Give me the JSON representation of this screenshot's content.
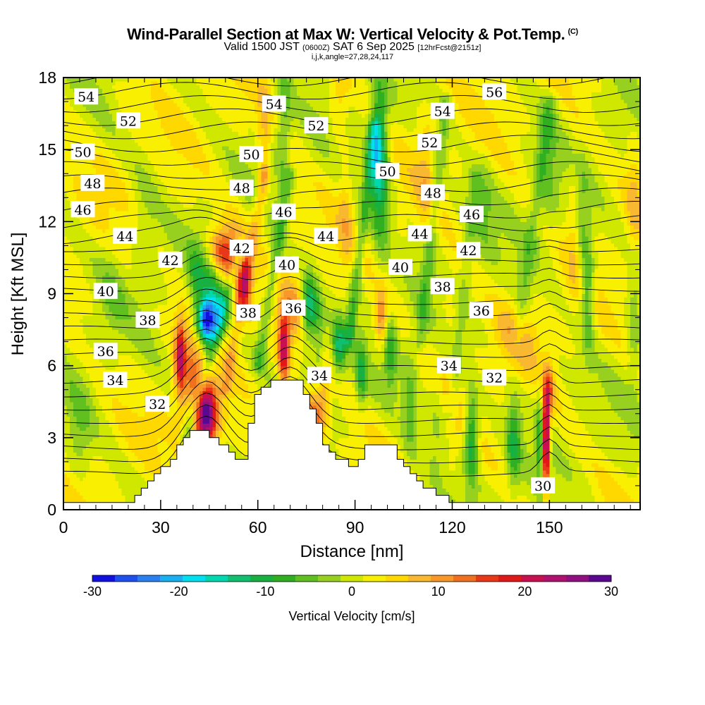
{
  "header": {
    "title": "Wind-Parallel Section at Max W: Vertical Velocity & Pot.Temp.",
    "title_mark": "(C)",
    "valid_prefix": "Valid 1500 JST",
    "valid_utc": "(0600Z)",
    "valid_date": "SAT 6 Sep 2025",
    "forecast": "[12hrFcst@2151z]",
    "indices": "i,j,k,angle=27,28,24,117"
  },
  "chart_data": {
    "type": "heatmap",
    "title": "Wind-Parallel Section at Max W: Vertical Velocity & Pot.Temp.",
    "xlabel": "Distance [nm]",
    "ylabel": "Height [Kft MSL]",
    "xlim": [
      0,
      178
    ],
    "ylim": [
      0,
      18
    ],
    "x_ticks": [
      "0",
      "30",
      "60",
      "90",
      "120",
      "150"
    ],
    "y_ticks": [
      "0",
      "3",
      "6",
      "9",
      "12",
      "15",
      "18"
    ],
    "colorbar": {
      "label": "Vertical Velocity [cm/s]",
      "min": -30,
      "max": 30,
      "tick_labels": [
        "-30",
        "-20",
        "-10",
        "0",
        "10",
        "20",
        "30"
      ],
      "colors": [
        "#1010e0",
        "#1e50f0",
        "#2a80f0",
        "#18b0f0",
        "#00e0f0",
        "#00d8b0",
        "#10c070",
        "#18b040",
        "#30b020",
        "#60c020",
        "#98d020",
        "#d0e800",
        "#f8f000",
        "#ffd800",
        "#f8b830",
        "#f89828",
        "#f07020",
        "#e83818",
        "#e01818",
        "#c81050",
        "#b01070",
        "#901080",
        "#5a0890"
      ]
    },
    "terrain": [
      [
        0,
        0.3
      ],
      [
        20,
        0.3
      ],
      [
        22,
        0.3
      ],
      [
        22,
        0.6
      ],
      [
        24,
        0.6
      ],
      [
        24,
        0.9
      ],
      [
        26,
        0.9
      ],
      [
        26,
        1.2
      ],
      [
        28,
        1.2
      ],
      [
        28,
        1.5
      ],
      [
        30,
        1.5
      ],
      [
        30,
        1.8
      ],
      [
        33,
        1.8
      ],
      [
        33,
        2.1
      ],
      [
        35,
        2.1
      ],
      [
        35,
        2.7
      ],
      [
        37,
        2.7
      ],
      [
        37,
        3.0
      ],
      [
        39,
        3.0
      ],
      [
        39,
        3.3
      ],
      [
        45,
        3.3
      ],
      [
        45,
        3.0
      ],
      [
        48,
        3.0
      ],
      [
        48,
        2.7
      ],
      [
        51,
        2.7
      ],
      [
        51,
        2.4
      ],
      [
        53,
        2.4
      ],
      [
        53,
        2.1
      ],
      [
        57,
        2.1
      ],
      [
        57,
        3.6
      ],
      [
        59,
        3.6
      ],
      [
        59,
        4.8
      ],
      [
        61,
        4.8
      ],
      [
        61,
        5.1
      ],
      [
        64,
        5.1
      ],
      [
        64,
        5.4
      ],
      [
        74,
        5.4
      ],
      [
        74,
        4.8
      ],
      [
        76,
        4.8
      ],
      [
        76,
        4.2
      ],
      [
        78,
        4.2
      ],
      [
        78,
        3.6
      ],
      [
        80,
        3.6
      ],
      [
        80,
        2.7
      ],
      [
        82,
        2.7
      ],
      [
        82,
        2.4
      ],
      [
        84,
        2.4
      ],
      [
        84,
        2.1
      ],
      [
        88,
        2.1
      ],
      [
        88,
        1.8
      ],
      [
        91,
        1.8
      ],
      [
        91,
        2.1
      ],
      [
        93,
        2.1
      ],
      [
        93,
        2.7
      ],
      [
        103,
        2.7
      ],
      [
        103,
        2.1
      ],
      [
        105,
        2.1
      ],
      [
        105,
        1.8
      ],
      [
        107,
        1.8
      ],
      [
        107,
        1.5
      ],
      [
        109,
        1.5
      ],
      [
        109,
        1.2
      ],
      [
        111,
        1.2
      ],
      [
        111,
        0.9
      ],
      [
        115,
        0.9
      ],
      [
        115,
        0.6
      ],
      [
        119,
        0.6
      ],
      [
        119,
        0.3
      ],
      [
        178,
        0.3
      ]
    ],
    "theta_levels": [
      "30",
      "32",
      "34",
      "36",
      "38",
      "40",
      "42",
      "44",
      "46",
      "48",
      "50",
      "52",
      "54",
      "56"
    ],
    "contour_labels": [
      {
        "text": "54",
        "x": 7,
        "y": 17.2
      },
      {
        "text": "52",
        "x": 20,
        "y": 16.2
      },
      {
        "text": "50",
        "x": 6,
        "y": 14.9
      },
      {
        "text": "48",
        "x": 9,
        "y": 13.6
      },
      {
        "text": "46",
        "x": 6,
        "y": 12.5
      },
      {
        "text": "44",
        "x": 19,
        "y": 11.4
      },
      {
        "text": "42",
        "x": 33,
        "y": 10.4
      },
      {
        "text": "40",
        "x": 13,
        "y": 9.1
      },
      {
        "text": "38",
        "x": 26,
        "y": 7.9
      },
      {
        "text": "36",
        "x": 13,
        "y": 6.6
      },
      {
        "text": "34",
        "x": 16,
        "y": 5.4
      },
      {
        "text": "32",
        "x": 29,
        "y": 4.4
      },
      {
        "text": "54",
        "x": 65,
        "y": 16.9
      },
      {
        "text": "52",
        "x": 78,
        "y": 16.0
      },
      {
        "text": "50",
        "x": 58,
        "y": 14.8
      },
      {
        "text": "48",
        "x": 55,
        "y": 13.4
      },
      {
        "text": "46",
        "x": 68,
        "y": 12.4
      },
      {
        "text": "44",
        "x": 81,
        "y": 11.4
      },
      {
        "text": "42",
        "x": 55,
        "y": 10.9
      },
      {
        "text": "40",
        "x": 69,
        "y": 10.2
      },
      {
        "text": "38",
        "x": 57,
        "y": 8.2
      },
      {
        "text": "36",
        "x": 71,
        "y": 8.4
      },
      {
        "text": "34",
        "x": 79,
        "y": 5.6
      },
      {
        "text": "56",
        "x": 133,
        "y": 17.4
      },
      {
        "text": "54",
        "x": 117,
        "y": 16.6
      },
      {
        "text": "52",
        "x": 113,
        "y": 15.3
      },
      {
        "text": "50",
        "x": 100,
        "y": 14.1
      },
      {
        "text": "48",
        "x": 114,
        "y": 13.2
      },
      {
        "text": "46",
        "x": 126,
        "y": 12.3
      },
      {
        "text": "44",
        "x": 110,
        "y": 11.5
      },
      {
        "text": "42",
        "x": 125,
        "y": 10.8
      },
      {
        "text": "40",
        "x": 104,
        "y": 10.1
      },
      {
        "text": "38",
        "x": 117,
        "y": 9.3
      },
      {
        "text": "36",
        "x": 129,
        "y": 8.3
      },
      {
        "text": "34",
        "x": 119,
        "y": 6.0
      },
      {
        "text": "32",
        "x": 133,
        "y": 5.5
      },
      {
        "text": "30",
        "x": 148,
        "y": 1.0
      }
    ]
  }
}
